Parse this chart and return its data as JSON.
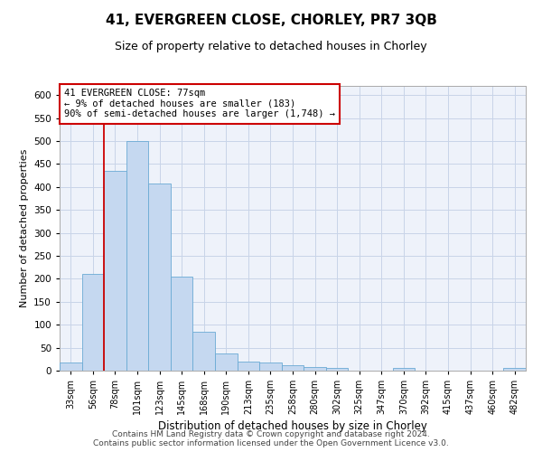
{
  "title": "41, EVERGREEN CLOSE, CHORLEY, PR7 3QB",
  "subtitle": "Size of property relative to detached houses in Chorley",
  "xlabel": "Distribution of detached houses by size in Chorley",
  "ylabel": "Number of detached properties",
  "categories": [
    "33sqm",
    "56sqm",
    "78sqm",
    "101sqm",
    "123sqm",
    "145sqm",
    "168sqm",
    "190sqm",
    "213sqm",
    "235sqm",
    "258sqm",
    "280sqm",
    "302sqm",
    "325sqm",
    "347sqm",
    "370sqm",
    "392sqm",
    "415sqm",
    "437sqm",
    "460sqm",
    "482sqm"
  ],
  "values": [
    18,
    210,
    435,
    500,
    408,
    205,
    85,
    38,
    20,
    18,
    12,
    7,
    5,
    0,
    0,
    5,
    0,
    0,
    0,
    0,
    5
  ],
  "bar_color": "#c5d8f0",
  "bar_edge_color": "#6aaad4",
  "bar_width": 1.0,
  "ylim": [
    0,
    620
  ],
  "yticks": [
    0,
    50,
    100,
    150,
    200,
    250,
    300,
    350,
    400,
    450,
    500,
    550,
    600
  ],
  "vline_index": 1.5,
  "property_line_color": "#cc0000",
  "annotation_text": "41 EVERGREEN CLOSE: 77sqm\n← 9% of detached houses are smaller (183)\n90% of semi-detached houses are larger (1,748) →",
  "annotation_box_color": "#cc0000",
  "footer_line1": "Contains HM Land Registry data © Crown copyright and database right 2024.",
  "footer_line2": "Contains public sector information licensed under the Open Government Licence v3.0.",
  "bg_color": "#ffffff",
  "plot_bg_color": "#eef2fa",
  "grid_color": "#c8d4e8",
  "title_fontsize": 11,
  "subtitle_fontsize": 9,
  "xlabel_fontsize": 8.5,
  "ylabel_fontsize": 8,
  "tick_fontsize": 7,
  "footer_fontsize": 6.5
}
